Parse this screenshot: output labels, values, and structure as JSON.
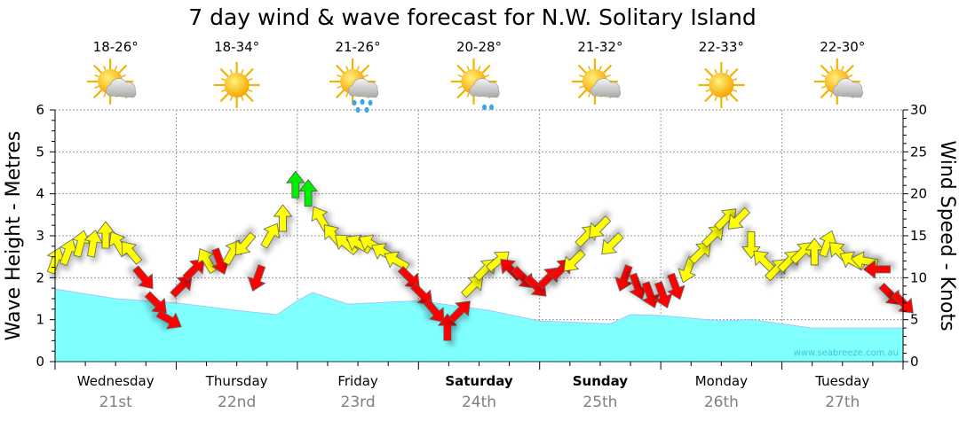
{
  "chart_data": {
    "type": "area",
    "title": "7 day wind & wave forecast for N.W. Solitary Island",
    "ylabel": "Wave Height - Metres",
    "y2label": "Wind Speed - Knots",
    "ylim": [
      0,
      6
    ],
    "y2lim": [
      0,
      30
    ],
    "yticks": [
      "0",
      "1",
      "2",
      "3",
      "4",
      "5",
      "6"
    ],
    "y2ticks": [
      "0",
      "5",
      "10",
      "15",
      "20",
      "25",
      "30"
    ],
    "grid": true,
    "watermark": "www.seabreeze.com.au",
    "days": [
      {
        "name": "Wednesday",
        "date": "21st",
        "temp": "18-26°",
        "icon": "partly-cloudy",
        "bold": false
      },
      {
        "name": "Thursday",
        "date": "22nd",
        "temp": "18-34°",
        "icon": "sunny",
        "bold": false
      },
      {
        "name": "Friday",
        "date": "23rd",
        "temp": "21-26°",
        "icon": "rain",
        "bold": false
      },
      {
        "name": "Saturday",
        "date": "24th",
        "temp": "20-28°",
        "icon": "showers",
        "bold": true
      },
      {
        "name": "Sunday",
        "date": "25th",
        "temp": "21-32°",
        "icon": "partly-cloudy",
        "bold": true
      },
      {
        "name": "Monday",
        "date": "26th",
        "temp": "22-33°",
        "icon": "sunny",
        "bold": false
      },
      {
        "name": "Tuesday",
        "date": "27th",
        "temp": "22-30°",
        "icon": "partly-cloudy",
        "bold": false
      }
    ],
    "wave_series": {
      "name": "Wave Height (m)",
      "color": "#80ffff",
      "hours": [
        0,
        12,
        24,
        36,
        44,
        48,
        51,
        58,
        72,
        86,
        96,
        110,
        114,
        120,
        132,
        138,
        150,
        168
      ],
      "values": [
        1.73,
        1.5,
        1.4,
        1.22,
        1.12,
        1.45,
        1.65,
        1.37,
        1.45,
        1.22,
        0.97,
        0.9,
        1.12,
        1.1,
        0.97,
        1.0,
        0.8,
        0.8
      ]
    },
    "wind_series": {
      "name": "Wind Speed (knots)",
      "colors": {
        "Y": "#ffff00",
        "R": "#ff0000",
        "G": "#00ee00"
      },
      "points": [
        {
          "kt": 12,
          "dir": 20,
          "c": "Y"
        },
        {
          "kt": 13,
          "dir": 20,
          "c": "Y"
        },
        {
          "kt": 14,
          "dir": 15,
          "c": "Y"
        },
        {
          "kt": 14,
          "dir": 10,
          "c": "Y"
        },
        {
          "kt": 15,
          "dir": 0,
          "c": "Y"
        },
        {
          "kt": 14,
          "dir": 330,
          "c": "Y"
        },
        {
          "kt": 13,
          "dir": 320,
          "c": "Y"
        },
        {
          "kt": 10,
          "dir": 140,
          "c": "R"
        },
        {
          "kt": 7,
          "dir": 135,
          "c": "R"
        },
        {
          "kt": 5,
          "dir": 120,
          "c": "R"
        },
        {
          "kt": 9,
          "dir": 45,
          "c": "R"
        },
        {
          "kt": 11,
          "dir": 45,
          "c": "R"
        },
        {
          "kt": 12,
          "dir": 330,
          "c": "Y"
        },
        {
          "kt": 12,
          "dir": 160,
          "c": "R"
        },
        {
          "kt": 13,
          "dir": 30,
          "c": "Y"
        },
        {
          "kt": 14,
          "dir": 220,
          "c": "Y"
        },
        {
          "kt": 10,
          "dir": 200,
          "c": "R"
        },
        {
          "kt": 15,
          "dir": 30,
          "c": "Y"
        },
        {
          "kt": 17,
          "dir": 0,
          "c": "Y"
        },
        {
          "kt": 21,
          "dir": 0,
          "c": "G"
        },
        {
          "kt": 20,
          "dir": 0,
          "c": "G"
        },
        {
          "kt": 17,
          "dir": 330,
          "c": "Y"
        },
        {
          "kt": 15,
          "dir": 320,
          "c": "Y"
        },
        {
          "kt": 14,
          "dir": 310,
          "c": "Y"
        },
        {
          "kt": 14,
          "dir": 300,
          "c": "Y"
        },
        {
          "kt": 14,
          "dir": 300,
          "c": "Y"
        },
        {
          "kt": 13,
          "dir": 300,
          "c": "Y"
        },
        {
          "kt": 12,
          "dir": 300,
          "c": "Y"
        },
        {
          "kt": 10,
          "dir": 135,
          "c": "R"
        },
        {
          "kt": 8,
          "dir": 135,
          "c": "R"
        },
        {
          "kt": 6,
          "dir": 140,
          "c": "R"
        },
        {
          "kt": 4,
          "dir": 0,
          "c": "R"
        },
        {
          "kt": 6,
          "dir": 45,
          "c": "R"
        },
        {
          "kt": 9,
          "dir": 45,
          "c": "Y"
        },
        {
          "kt": 11,
          "dir": 45,
          "c": "Y"
        },
        {
          "kt": 12,
          "dir": 50,
          "c": "Y"
        },
        {
          "kt": 11,
          "dir": 315,
          "c": "R"
        },
        {
          "kt": 10,
          "dir": 135,
          "c": "R"
        },
        {
          "kt": 9,
          "dir": 135,
          "c": "R"
        },
        {
          "kt": 10,
          "dir": 45,
          "c": "R"
        },
        {
          "kt": 11,
          "dir": 45,
          "c": "R"
        },
        {
          "kt": 12,
          "dir": 225,
          "c": "Y"
        },
        {
          "kt": 15,
          "dir": 45,
          "c": "Y"
        },
        {
          "kt": 16,
          "dir": 225,
          "c": "Y"
        },
        {
          "kt": 14,
          "dir": 225,
          "c": "Y"
        },
        {
          "kt": 10,
          "dir": 200,
          "c": "R"
        },
        {
          "kt": 9,
          "dir": 160,
          "c": "R"
        },
        {
          "kt": 8,
          "dir": 160,
          "c": "R"
        },
        {
          "kt": 8,
          "dir": 160,
          "c": "R"
        },
        {
          "kt": 9,
          "dir": 160,
          "c": "R"
        },
        {
          "kt": 11,
          "dir": 200,
          "c": "Y"
        },
        {
          "kt": 13,
          "dir": 45,
          "c": "Y"
        },
        {
          "kt": 15,
          "dir": 45,
          "c": "Y"
        },
        {
          "kt": 17,
          "dir": 45,
          "c": "Y"
        },
        {
          "kt": 17,
          "dir": 225,
          "c": "Y"
        },
        {
          "kt": 14,
          "dir": 180,
          "c": "Y"
        },
        {
          "kt": 12,
          "dir": 315,
          "c": "Y"
        },
        {
          "kt": 11,
          "dir": 45,
          "c": "Y"
        },
        {
          "kt": 12,
          "dir": 45,
          "c": "Y"
        },
        {
          "kt": 13,
          "dir": 45,
          "c": "Y"
        },
        {
          "kt": 13,
          "dir": 0,
          "c": "Y"
        },
        {
          "kt": 14,
          "dir": 20,
          "c": "Y"
        },
        {
          "kt": 13,
          "dir": 315,
          "c": "Y"
        },
        {
          "kt": 12,
          "dir": 300,
          "c": "Y"
        },
        {
          "kt": 12,
          "dir": 280,
          "c": "Y"
        },
        {
          "kt": 11,
          "dir": 270,
          "c": "R"
        },
        {
          "kt": 8,
          "dir": 135,
          "c": "R"
        },
        {
          "kt": 7,
          "dir": 135,
          "c": "R"
        }
      ]
    }
  }
}
